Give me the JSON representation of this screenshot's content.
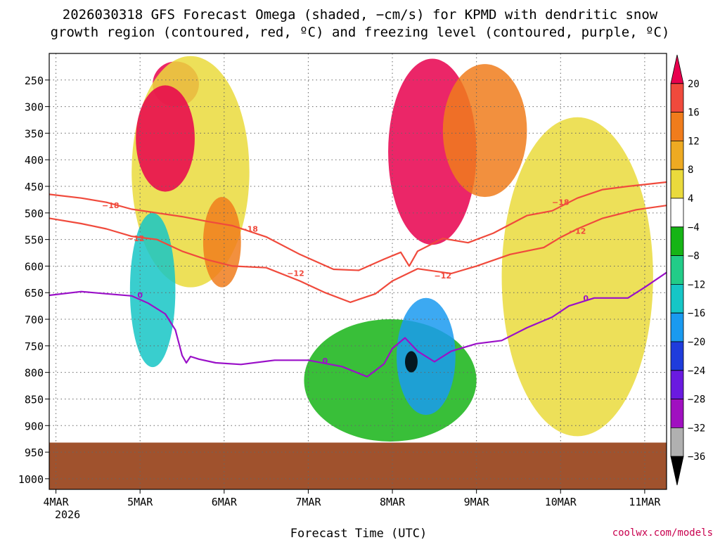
{
  "title_line1": "2026030318 GFS Forecast Omega (shaded, −cm/s) for KPMD with dendritic snow",
  "title_line2": "growth region (contoured, red, ºC) and freezing level (contoured, purple, ºC)",
  "xlabel": "Forecast Time (UTC)",
  "year_label": "2026",
  "credit": "coolwx.com/models",
  "colors": {
    "red_contour": "#f04a3c",
    "purple_contour": "#9a10c8",
    "ground": "#a0522d"
  },
  "chart_data": {
    "type": "heatmap",
    "x_axis": {
      "unit": "days since 4MAR 00Z",
      "range": [
        -0.08,
        7.26
      ],
      "ticks": [
        {
          "label": "4MAR",
          "x": 0
        },
        {
          "label": "5MAR",
          "x": 1
        },
        {
          "label": "6MAR",
          "x": 2
        },
        {
          "label": "7MAR",
          "x": 3
        },
        {
          "label": "8MAR",
          "x": 4
        },
        {
          "label": "9MAR",
          "x": 5
        },
        {
          "label": "10MAR",
          "x": 6
        },
        {
          "label": "11MAR",
          "x": 7
        }
      ]
    },
    "y_axis": {
      "unit": "hPa",
      "range": [
        200,
        1020
      ],
      "ticks": [
        {
          "label": "250",
          "p": 250
        },
        {
          "label": "300",
          "p": 300
        },
        {
          "label": "350",
          "p": 350
        },
        {
          "label": "400",
          "p": 400
        },
        {
          "label": "450",
          "p": 450
        },
        {
          "label": "500",
          "p": 500
        },
        {
          "label": "550",
          "p": 550
        },
        {
          "label": "600",
          "p": 600
        },
        {
          "label": "650",
          "p": 650
        },
        {
          "label": "700",
          "p": 700
        },
        {
          "label": "750",
          "p": 750
        },
        {
          "label": "800",
          "p": 800
        },
        {
          "label": "850",
          "p": 850
        },
        {
          "label": "900",
          "p": 900
        },
        {
          "label": "950",
          "p": 950
        },
        {
          "label": "1000",
          "p": 1000
        }
      ]
    },
    "colorbar": {
      "labels": [
        "20",
        "16",
        "12",
        "8",
        "4",
        "−4",
        "−8",
        "−12",
        "−16",
        "−20",
        "−24",
        "−28",
        "−32",
        "−36"
      ],
      "colors": [
        "#e8004e",
        "#f04a3c",
        "#f07c1c",
        "#eeaa22",
        "#eada3c",
        "#ffffff",
        "#16b416",
        "#22cc88",
        "#16c6c6",
        "#1a9af0",
        "#1f3cdc",
        "#6a1ae0",
        "#a010c0",
        "#b0b0b0",
        "#000000"
      ]
    },
    "shaded_regions": [
      {
        "name": "deep-magenta-5mar",
        "level": 20,
        "t0": 1.15,
        "t1": 1.7,
        "p0": 215,
        "p1": 300
      },
      {
        "name": "upper-yellow-5mar",
        "level": 4,
        "t0": 0.9,
        "t1": 2.3,
        "p0": 205,
        "p1": 640
      },
      {
        "name": "rising-core-5mar",
        "level": 20,
        "t0": 0.95,
        "t1": 1.65,
        "p0": 260,
        "p1": 460
      },
      {
        "name": "midlevel-orange-6mar",
        "level": 12,
        "t0": 1.75,
        "t1": 2.2,
        "p0": 470,
        "p1": 640
      },
      {
        "name": "sinking-column-5mar",
        "level": -16,
        "t0": 0.88,
        "t1": 1.42,
        "p0": 500,
        "p1": 790
      },
      {
        "name": "upper-magenta-8mar",
        "level": 20,
        "t0": 3.95,
        "t1": 5.0,
        "p0": 210,
        "p1": 560
      },
      {
        "name": "upper-orange-9mar",
        "level": 12,
        "t0": 4.6,
        "t1": 5.6,
        "p0": 220,
        "p1": 470
      },
      {
        "name": "lowlevel-green-7mar",
        "level": -8,
        "t0": 2.95,
        "t1": 5.0,
        "p0": 700,
        "p1": 930
      },
      {
        "name": "lowlevel-blue-8mar",
        "level": -20,
        "t0": 4.05,
        "t1": 4.75,
        "p0": 660,
        "p1": 880
      },
      {
        "name": "sinking-core-8mar",
        "level": -36,
        "t0": 4.15,
        "t1": 4.3,
        "p0": 760,
        "p1": 800
      },
      {
        "name": "midlevel-yellow-10mar",
        "level": 4,
        "t0": 5.3,
        "t1": 7.1,
        "p0": 320,
        "p1": 920
      }
    ],
    "contours": [
      {
        "name": "isotherm-minus-18",
        "value": -18,
        "label": "−18",
        "color_key": "red_contour",
        "label_points": [
          {
            "t": 0.65,
            "p": 486
          },
          {
            "t": 2.3,
            "p": 530
          },
          {
            "t": 6.0,
            "p": 480
          }
        ],
        "points": [
          [
            -0.08,
            465
          ],
          [
            0.3,
            472
          ],
          [
            0.6,
            480
          ],
          [
            0.9,
            493
          ],
          [
            1.2,
            500
          ],
          [
            1.5,
            507
          ],
          [
            1.8,
            516
          ],
          [
            2.1,
            524
          ],
          [
            2.5,
            545
          ],
          [
            2.9,
            578
          ],
          [
            3.3,
            606
          ],
          [
            3.6,
            608
          ],
          [
            3.9,
            587
          ],
          [
            4.1,
            574
          ],
          [
            4.2,
            600
          ],
          [
            4.3,
            572
          ],
          [
            4.6,
            548
          ],
          [
            4.9,
            556
          ],
          [
            5.2,
            538
          ],
          [
            5.6,
            505
          ],
          [
            5.9,
            496
          ],
          [
            6.2,
            472
          ],
          [
            6.5,
            456
          ],
          [
            6.8,
            450
          ],
          [
            7.26,
            442
          ]
        ]
      },
      {
        "name": "isotherm-minus-12",
        "value": -12,
        "label": "−12",
        "color_key": "red_contour",
        "label_points": [
          {
            "t": 0.95,
            "p": 548
          },
          {
            "t": 2.85,
            "p": 613
          },
          {
            "t": 4.6,
            "p": 618
          },
          {
            "t": 6.2,
            "p": 534
          }
        ],
        "points": [
          [
            -0.08,
            510
          ],
          [
            0.3,
            520
          ],
          [
            0.6,
            530
          ],
          [
            0.9,
            544
          ],
          [
            1.2,
            550
          ],
          [
            1.5,
            572
          ],
          [
            1.8,
            588
          ],
          [
            2.1,
            600
          ],
          [
            2.5,
            603
          ],
          [
            2.9,
            628
          ],
          [
            3.2,
            650
          ],
          [
            3.5,
            668
          ],
          [
            3.8,
            652
          ],
          [
            4.0,
            628
          ],
          [
            4.3,
            605
          ],
          [
            4.7,
            614
          ],
          [
            5.0,
            600
          ],
          [
            5.4,
            578
          ],
          [
            5.8,
            565
          ],
          [
            6.0,
            546
          ],
          [
            6.2,
            530
          ],
          [
            6.5,
            510
          ],
          [
            6.9,
            494
          ],
          [
            7.26,
            486
          ]
        ]
      },
      {
        "name": "freezing-level-0",
        "value": 0,
        "label": "0",
        "color_key": "purple_contour",
        "label_points": [
          {
            "t": 1.0,
            "p": 654
          },
          {
            "t": 3.2,
            "p": 778
          },
          {
            "t": 6.3,
            "p": 660
          }
        ],
        "points": [
          [
            -0.08,
            655
          ],
          [
            0.3,
            648
          ],
          [
            0.6,
            652
          ],
          [
            0.9,
            656
          ],
          [
            1.1,
            670
          ],
          [
            1.3,
            690
          ],
          [
            1.42,
            720
          ],
          [
            1.5,
            768
          ],
          [
            1.55,
            782
          ],
          [
            1.6,
            770
          ],
          [
            1.7,
            775
          ],
          [
            1.9,
            782
          ],
          [
            2.2,
            785
          ],
          [
            2.6,
            777
          ],
          [
            3.0,
            777
          ],
          [
            3.4,
            789
          ],
          [
            3.7,
            808
          ],
          [
            3.9,
            784
          ],
          [
            4.0,
            755
          ],
          [
            4.15,
            735
          ],
          [
            4.3,
            760
          ],
          [
            4.5,
            780
          ],
          [
            4.7,
            760
          ],
          [
            5.0,
            746
          ],
          [
            5.3,
            740
          ],
          [
            5.6,
            716
          ],
          [
            5.9,
            696
          ],
          [
            6.1,
            675
          ],
          [
            6.4,
            660
          ],
          [
            6.8,
            660
          ],
          [
            7.0,
            640
          ],
          [
            7.26,
            612
          ]
        ]
      }
    ],
    "ground": {
      "name": "terrain",
      "p0": 932,
      "p1": 1020
    }
  }
}
